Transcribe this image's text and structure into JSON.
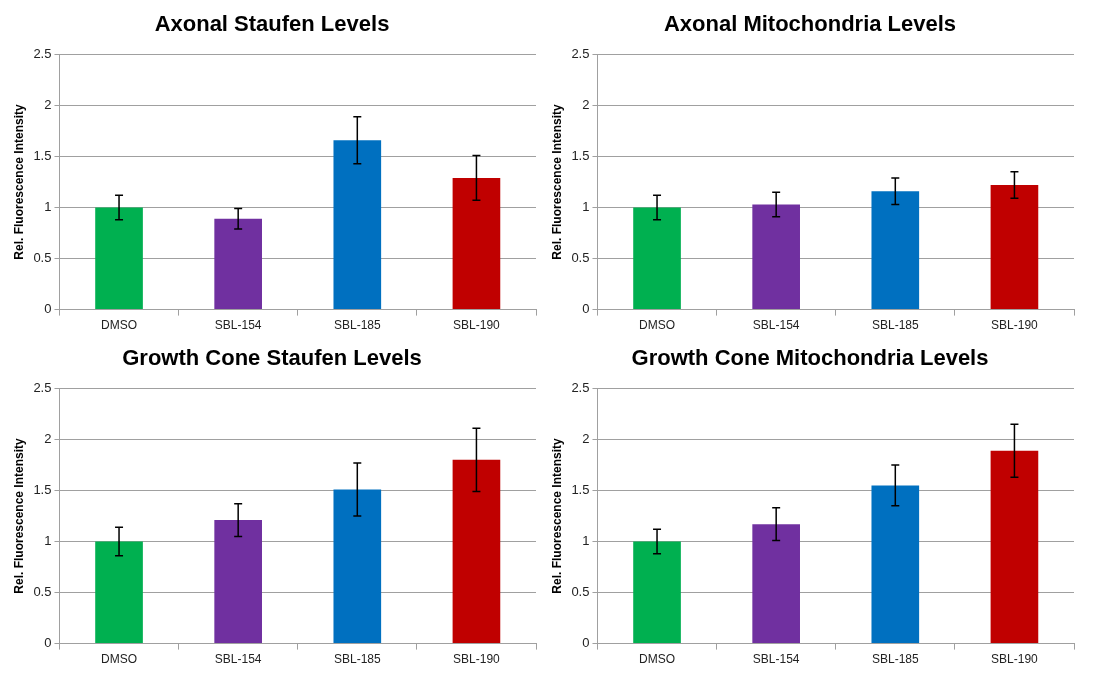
{
  "chart_data": [
    {
      "type": "bar",
      "title": "Axonal Staufen Levels",
      "ylabel": "Rel. Fluorescence Intensity",
      "categories": [
        "DMSO",
        "SBL-154",
        "SBL-185",
        "SBL-190"
      ],
      "values": [
        1.0,
        0.89,
        1.66,
        1.29
      ],
      "colors": [
        "#00b050",
        "#7030a0",
        "#0070c0",
        "#c00000"
      ],
      "errors": [
        0.12,
        0.1,
        0.23,
        0.22
      ],
      "ylim": [
        0,
        2.5
      ],
      "yticks": [
        0,
        0.5,
        1,
        1.5,
        2,
        2.5
      ],
      "grid": "y",
      "legend": false
    },
    {
      "type": "bar",
      "title": "Axonal Mitochondria Levels",
      "ylabel": "Rel. Fluorescence Intensity",
      "categories": [
        "DMSO",
        "SBL-154",
        "SBL-185",
        "SBL-190"
      ],
      "values": [
        1.0,
        1.03,
        1.16,
        1.22
      ],
      "colors": [
        "#00b050",
        "#7030a0",
        "#0070c0",
        "#c00000"
      ],
      "errors": [
        0.12,
        0.12,
        0.13,
        0.13
      ],
      "ylim": [
        0,
        2.5
      ],
      "yticks": [
        0,
        0.5,
        1,
        1.5,
        2,
        2.5
      ],
      "grid": "y",
      "legend": false
    },
    {
      "type": "bar",
      "title": "Growth Cone Staufen Levels",
      "ylabel": "Rel. Fluorescence Intensity",
      "categories": [
        "DMSO",
        "SBL-154",
        "SBL-185",
        "SBL-190"
      ],
      "values": [
        1.0,
        1.21,
        1.51,
        1.8
      ],
      "colors": [
        "#00b050",
        "#7030a0",
        "#0070c0",
        "#c00000"
      ],
      "errors": [
        0.14,
        0.16,
        0.26,
        0.31
      ],
      "ylim": [
        0,
        2.5
      ],
      "yticks": [
        0,
        0.5,
        1,
        1.5,
        2,
        2.5
      ],
      "grid": "y",
      "legend": false
    },
    {
      "type": "bar",
      "title": "Growth Cone Mitochondria Levels",
      "ylabel": "Rel. Fluorescence Intensity",
      "categories": [
        "DMSO",
        "SBL-154",
        "SBL-185",
        "SBL-190"
      ],
      "values": [
        1.0,
        1.17,
        1.55,
        1.89
      ],
      "colors": [
        "#00b050",
        "#7030a0",
        "#0070c0",
        "#c00000"
      ],
      "errors": [
        0.12,
        0.16,
        0.2,
        0.26
      ],
      "ylim": [
        0,
        2.5
      ],
      "yticks": [
        0,
        0.5,
        1,
        1.5,
        2,
        2.5
      ],
      "grid": "y",
      "legend": false
    }
  ]
}
